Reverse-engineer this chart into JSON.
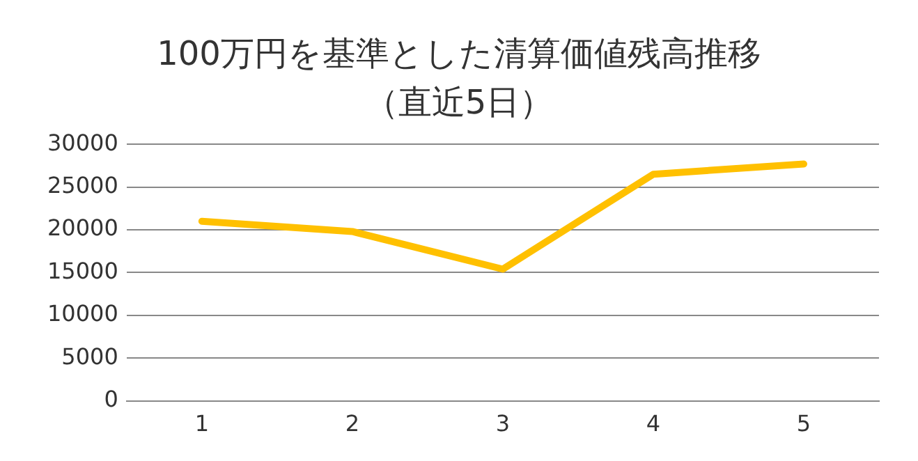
{
  "chart_data": {
    "type": "line",
    "title": "100万円を基準とした清算価値残高推移",
    "subtitle": "（直近5日）",
    "categories": [
      "1",
      "2",
      "3",
      "4",
      "5"
    ],
    "series": [
      {
        "color": "#ffc000",
        "values": [
          21000,
          19800,
          15400,
          26500,
          27700
        ]
      }
    ],
    "ylim": [
      0,
      30000
    ],
    "yticks": [
      0,
      5000,
      10000,
      15000,
      20000,
      25000,
      30000
    ],
    "grid": "y",
    "legend": false,
    "marker": "none",
    "line_style": "solid"
  }
}
